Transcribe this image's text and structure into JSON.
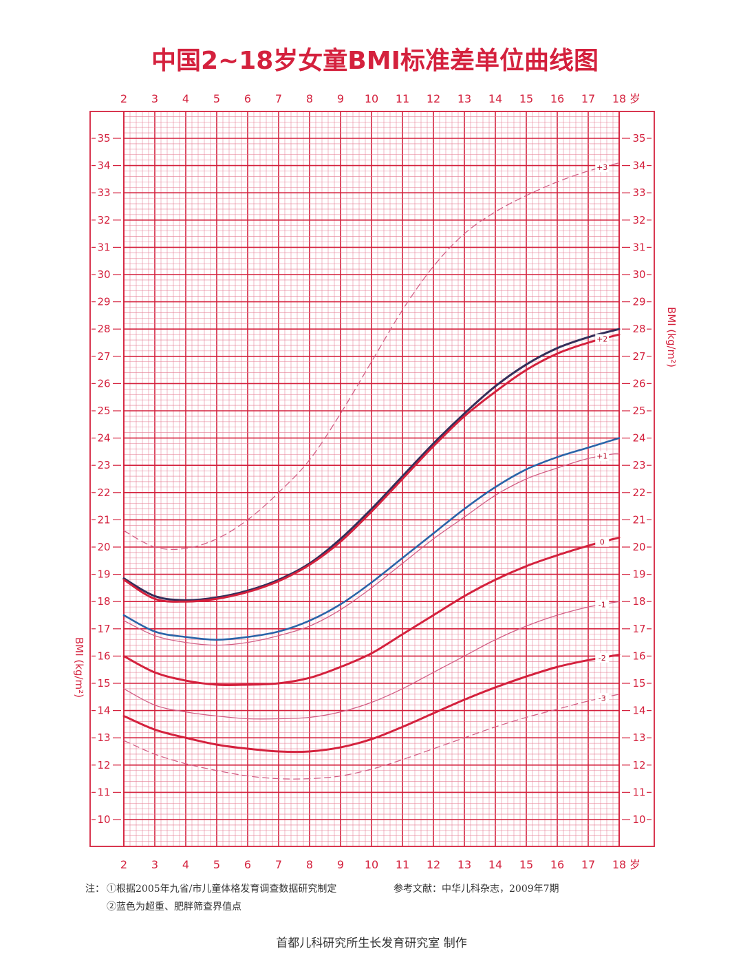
{
  "chart_data": {
    "type": "line",
    "title": "中国2~18岁女童BMI标准差单位曲线图",
    "xlabel": "",
    "x_unit_label": "岁",
    "ylabel": "BMI (kg/m²)",
    "xlim": [
      2,
      18
    ],
    "ylim": [
      10,
      35
    ],
    "x_ticks": [
      "2",
      "3",
      "4",
      "5",
      "6",
      "7",
      "8",
      "9",
      "10",
      "11",
      "12",
      "13",
      "14",
      "15",
      "16",
      "17",
      "18"
    ],
    "y_ticks": [
      "10",
      "11",
      "12",
      "13",
      "14",
      "15",
      "16",
      "17",
      "18",
      "19",
      "20",
      "21",
      "22",
      "23",
      "24",
      "25",
      "26",
      "27",
      "28",
      "29",
      "30",
      "31",
      "32",
      "33",
      "34",
      "35"
    ],
    "grid": true,
    "x": [
      2,
      3,
      4,
      5,
      6,
      7,
      8,
      9,
      10,
      11,
      12,
      13,
      14,
      15,
      16,
      17,
      18
    ],
    "series": [
      {
        "name": "+3",
        "color": "#d35f86",
        "style": "dashed",
        "values": [
          20.6,
          20.0,
          19.95,
          20.3,
          21.0,
          22.0,
          23.2,
          24.9,
          26.8,
          28.7,
          30.3,
          31.5,
          32.3,
          32.9,
          33.4,
          33.8,
          34.1
        ]
      },
      {
        "name": "",
        "color": "#332f5a",
        "style": "solid-heavy",
        "values": [
          18.85,
          18.2,
          18.05,
          18.15,
          18.4,
          18.8,
          19.4,
          20.3,
          21.4,
          22.6,
          23.8,
          24.9,
          25.9,
          26.7,
          27.3,
          27.7,
          28.0
        ]
      },
      {
        "name": "+2",
        "color": "#d4213d",
        "style": "solid-heavy",
        "values": [
          18.8,
          18.1,
          18.0,
          18.1,
          18.35,
          18.75,
          19.35,
          20.2,
          21.3,
          22.5,
          23.7,
          24.8,
          25.7,
          26.5,
          27.1,
          27.5,
          27.8
        ]
      },
      {
        "name": "",
        "color": "#2a64a8",
        "style": "solid",
        "values": [
          17.5,
          16.9,
          16.7,
          16.6,
          16.7,
          16.9,
          17.3,
          17.9,
          18.7,
          19.6,
          20.5,
          21.4,
          22.2,
          22.85,
          23.3,
          23.65,
          24.0
        ]
      },
      {
        "name": "+1",
        "color": "#d35f86",
        "style": "solid-thin",
        "values": [
          17.3,
          16.75,
          16.5,
          16.4,
          16.5,
          16.75,
          17.1,
          17.7,
          18.5,
          19.4,
          20.3,
          21.1,
          21.9,
          22.5,
          22.9,
          23.25,
          23.45
        ]
      },
      {
        "name": "0",
        "color": "#d4213d",
        "style": "solid-heavy",
        "values": [
          16.0,
          15.4,
          15.1,
          14.95,
          14.95,
          15.0,
          15.2,
          15.6,
          16.1,
          16.8,
          17.5,
          18.2,
          18.8,
          19.3,
          19.7,
          20.05,
          20.35
        ]
      },
      {
        "name": "-1",
        "color": "#d35f86",
        "style": "solid-thin",
        "values": [
          14.8,
          14.2,
          13.95,
          13.8,
          13.7,
          13.7,
          13.75,
          13.95,
          14.3,
          14.8,
          15.4,
          16.0,
          16.6,
          17.1,
          17.5,
          17.8,
          18.0
        ]
      },
      {
        "name": "-2",
        "color": "#d4213d",
        "style": "solid-heavy",
        "values": [
          13.8,
          13.3,
          13.0,
          12.75,
          12.6,
          12.5,
          12.5,
          12.65,
          12.95,
          13.4,
          13.9,
          14.4,
          14.85,
          15.25,
          15.6,
          15.85,
          16.05
        ]
      },
      {
        "name": "-3",
        "color": "#d35f86",
        "style": "dashed",
        "values": [
          12.9,
          12.4,
          12.05,
          11.8,
          11.6,
          11.5,
          11.5,
          11.6,
          11.85,
          12.2,
          12.6,
          13.0,
          13.4,
          13.75,
          14.05,
          14.35,
          14.6
        ]
      }
    ]
  },
  "notes": {
    "prefix": "注：",
    "line1": "①根据2005年九省/市儿童体格发育调查数据研究制定",
    "reference": "参考文献：中华儿科杂志，2009年7期",
    "line2": "②蓝色为超重、肥胖筛查界值点"
  },
  "footer": "首都儿科研究所生长发育研究室 制作",
  "colors": {
    "primary": "#d4213d",
    "grid_minor": "#e47b92",
    "thin_curve": "#d35f86",
    "blue_screening": "#2a64a8",
    "navy_screening": "#332f5a"
  }
}
